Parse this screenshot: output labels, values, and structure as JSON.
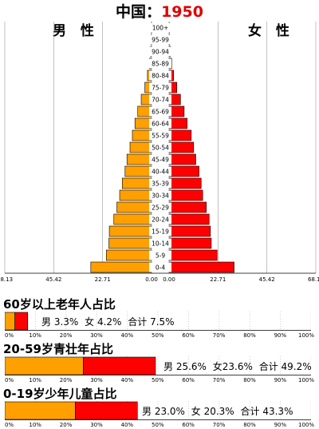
{
  "title": {
    "country": "中国",
    "sep": "：",
    "year": "1950"
  },
  "labels": {
    "male": "男 性",
    "female": "女 性"
  },
  "colors": {
    "male": "#ff9f00",
    "female": "#ff0000",
    "grid": "#9a9a9a",
    "label_box": "#ffffff"
  },
  "chart_data": [
    {
      "type": "bar",
      "subtype": "population-pyramid",
      "categories": [
        "100+",
        "95-99",
        "90-94",
        "85-89",
        "80-84",
        "75-79",
        "70-74",
        "65-69",
        "60-64",
        "55-59",
        "50-54",
        "45-49",
        "40-44",
        "35-39",
        "30-34",
        "25-29",
        "20-24",
        "15-19",
        "10-14",
        "5-9",
        "0-4"
      ],
      "series": [
        {
          "name": "男 性",
          "side": "left",
          "values": [
            0.1,
            0.2,
            0.5,
            1.0,
            1.9,
            3.1,
            4.8,
            6.4,
            7.7,
            8.9,
            10.0,
            11.4,
            12.3,
            13.6,
            14.8,
            16.1,
            17.5,
            19.6,
            19.8,
            21.0,
            28.2
          ]
        },
        {
          "name": "女 性",
          "side": "right",
          "values": [
            0.2,
            0.3,
            0.7,
            1.2,
            2.1,
            3.6,
            5.3,
            7.0,
            8.4,
            10.3,
            11.4,
            12.4,
            13.9,
            14.9,
            15.6,
            17.3,
            18.6,
            19.2,
            19.6,
            22.3,
            30.2
          ]
        }
      ],
      "tick_labels_left": [
        "68.13",
        "45.42",
        "22.71",
        "0.00"
      ],
      "tick_labels_right": [
        "0.00",
        "22.71",
        "45.42",
        "68.13"
      ],
      "xlim": [
        0,
        68.13
      ],
      "grid": true
    },
    {
      "type": "bar",
      "subtype": "stacked-share",
      "title": "60岁以上老年人占比",
      "tick_labels": [
        "0%",
        "10%",
        "20%",
        "30%",
        "40%",
        "50%",
        "60%",
        "70%",
        "80%",
        "90%",
        "100%"
      ],
      "series": [
        {
          "name": "男",
          "value": 3.3
        },
        {
          "name": "女",
          "value": 4.2
        }
      ],
      "legend": {
        "male": "男 3.3%",
        "female": "女 4.2%",
        "total": "合计 7.5%"
      }
    },
    {
      "type": "bar",
      "subtype": "stacked-share",
      "title": "20-59岁青壮年占比",
      "tick_labels": [
        "0%",
        "10%",
        "20%",
        "30%",
        "40%",
        "50%",
        "60%",
        "70%",
        "80%",
        "90%",
        "100%"
      ],
      "series": [
        {
          "name": "男",
          "value": 25.6
        },
        {
          "name": "女",
          "value": 23.6
        }
      ],
      "legend": {
        "male": "男 25.6%",
        "female": "女23.6%",
        "total": "合计 49.2%"
      }
    },
    {
      "type": "bar",
      "subtype": "stacked-share",
      "title": "0-19岁少年儿童占比",
      "tick_labels": [
        "0%",
        "10%",
        "20%",
        "30%",
        "40%",
        "50%",
        "60%",
        "70%",
        "80%",
        "90%",
        "100%"
      ],
      "series": [
        {
          "name": "男",
          "value": 23.0
        },
        {
          "name": "女",
          "value": 20.3
        }
      ],
      "legend": {
        "male": "男 23.0%",
        "female": "女 20.3%",
        "total": "合计 43.3%"
      }
    }
  ]
}
